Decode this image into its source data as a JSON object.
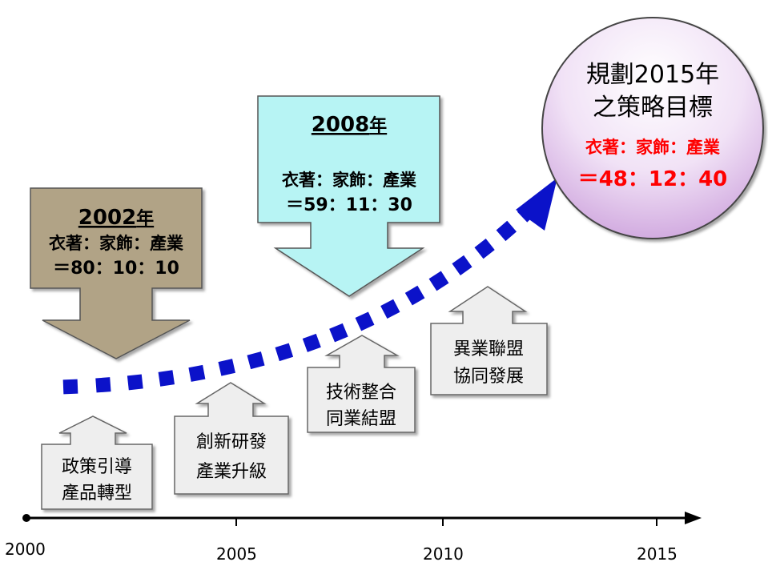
{
  "timeline": {
    "ticks": [
      "2000",
      "2005",
      "2010",
      "2015"
    ]
  },
  "milestones": [
    {
      "year_num": "2002",
      "year_suffix": "年",
      "ratio_label": "衣著：家飾：產業",
      "ratio_values": "＝80：10：10",
      "color": "#b1a386"
    },
    {
      "year_num": "2008",
      "year_suffix": "年",
      "ratio_label": "衣著：家飾：產業",
      "ratio_values": "＝59：11：30",
      "color": "#b7f4f4"
    }
  ],
  "goal": {
    "title_line1": "規劃2015年",
    "title_line2": "之策略目標",
    "ratio_label": "衣著：家飾：產業",
    "ratio_values": "＝48：12：40",
    "highlight_color": "#ff0000"
  },
  "strategies": [
    {
      "line1": "政策引導",
      "line2": "產品轉型"
    },
    {
      "line1": "創新研發",
      "line2": "產業升級"
    },
    {
      "line1": "技術整合",
      "line2": "同業結盟"
    },
    {
      "line1": "異業聯盟",
      "line2": "協同發展"
    }
  ],
  "colors": {
    "trend_dots": "#0b12c9",
    "axis": "#000000",
    "strategy_fill": "#eeeeee"
  }
}
